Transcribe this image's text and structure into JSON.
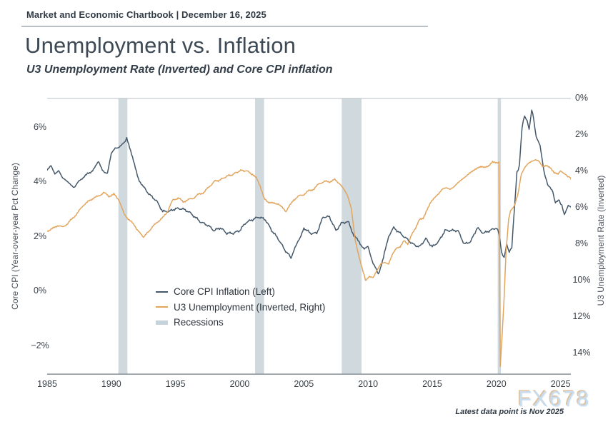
{
  "header": {
    "kicker": "Market and Economic Chartbook | December 16, 2025"
  },
  "title": "Unemployment vs. Inflation",
  "subtitle": "U3 Unemployment Rate (Inverted) and Core CPI inflation",
  "watermark": "FX678",
  "footnote": "Latest data point is Nov 2025",
  "colors": {
    "cpi_line": "#44586a",
    "u3_line": "#e2a55e",
    "recession_band": "#d0d9de",
    "top_border": "#cbd1d5",
    "bottom_axis": "#8f989e"
  },
  "chart_data": {
    "type": "line",
    "title": "Unemployment vs. Inflation",
    "x_range": [
      1985,
      2025.8
    ],
    "x_ticks": [
      {
        "v": 1985,
        "label": "1985"
      },
      {
        "v": 1990,
        "label": "1990"
      },
      {
        "v": 1995,
        "label": "1995"
      },
      {
        "v": 2000,
        "label": "2000"
      },
      {
        "v": 2005,
        "label": "2005"
      },
      {
        "v": 2010,
        "label": "2010"
      },
      {
        "v": 2015,
        "label": "2015"
      },
      {
        "v": 2020,
        "label": "2020"
      },
      {
        "v": 2025,
        "label": "2025"
      }
    ],
    "left_axis": {
      "title": "Core CPI (Year-over-year Pct Change)",
      "range": [
        -3.08,
        7.06
      ],
      "ticks": [
        {
          "v": 6,
          "label": "6%"
        },
        {
          "v": 4,
          "label": "4%"
        },
        {
          "v": 2,
          "label": "2%"
        },
        {
          "v": 0,
          "label": "0%"
        },
        {
          "v": -2,
          "label": "−2%"
        }
      ]
    },
    "right_axis": {
      "title": "U3 Unemployment Rate (Inverted)",
      "inverted": true,
      "range": [
        0,
        15.2
      ],
      "ticks": [
        {
          "v": 0,
          "label": "0%"
        },
        {
          "v": 2,
          "label": "2%"
        },
        {
          "v": 4,
          "label": "4%"
        },
        {
          "v": 6,
          "label": "6%"
        },
        {
          "v": 8,
          "label": "8%"
        },
        {
          "v": 10,
          "label": "10%"
        },
        {
          "v": 12,
          "label": "12%"
        },
        {
          "v": 14,
          "label": "14%"
        }
      ]
    },
    "recessions": {
      "label": "Recessions",
      "color": "#d0d9de",
      "spans": [
        [
          1990.55,
          1991.25
        ],
        [
          2001.2,
          2001.9
        ],
        [
          2007.95,
          2009.5
        ],
        [
          2020.1,
          2020.35
        ]
      ]
    },
    "series": [
      {
        "name": "Core CPI Inflation (Left)",
        "axis": "left",
        "color": "#44586a",
        "points": [
          [
            1985.0,
            4.4
          ],
          [
            1985.3,
            4.6
          ],
          [
            1985.6,
            4.3
          ],
          [
            1985.9,
            4.4
          ],
          [
            1986.2,
            4.1
          ],
          [
            1986.5,
            4.0
          ],
          [
            1986.8,
            3.9
          ],
          [
            1987.1,
            3.8
          ],
          [
            1987.5,
            4.0
          ],
          [
            1987.9,
            4.2
          ],
          [
            1988.3,
            4.3
          ],
          [
            1988.7,
            4.5
          ],
          [
            1989.0,
            4.7
          ],
          [
            1989.3,
            4.4
          ],
          [
            1989.7,
            4.3
          ],
          [
            1990.0,
            5.0
          ],
          [
            1990.3,
            5.2
          ],
          [
            1990.7,
            5.3
          ],
          [
            1991.0,
            5.4
          ],
          [
            1991.2,
            5.6
          ],
          [
            1991.5,
            5.1
          ],
          [
            1991.8,
            4.6
          ],
          [
            1992.1,
            4.1
          ],
          [
            1992.5,
            3.8
          ],
          [
            1993.0,
            3.5
          ],
          [
            1993.5,
            3.3
          ],
          [
            1994.0,
            2.9
          ],
          [
            1994.5,
            2.9
          ],
          [
            1995.0,
            3.0
          ],
          [
            1995.5,
            3.0
          ],
          [
            1996.0,
            2.9
          ],
          [
            1996.5,
            2.7
          ],
          [
            1997.0,
            2.5
          ],
          [
            1997.5,
            2.4
          ],
          [
            1998.0,
            2.2
          ],
          [
            1998.5,
            2.3
          ],
          [
            1999.0,
            2.1
          ],
          [
            1999.5,
            2.1
          ],
          [
            2000.0,
            2.2
          ],
          [
            2000.5,
            2.5
          ],
          [
            2001.0,
            2.6
          ],
          [
            2001.5,
            2.7
          ],
          [
            2002.0,
            2.6
          ],
          [
            2002.5,
            2.2
          ],
          [
            2003.0,
            1.9
          ],
          [
            2003.5,
            1.5
          ],
          [
            2004.0,
            1.2
          ],
          [
            2004.3,
            1.6
          ],
          [
            2004.7,
            1.9
          ],
          [
            2005.0,
            2.3
          ],
          [
            2005.5,
            2.1
          ],
          [
            2006.0,
            2.1
          ],
          [
            2006.5,
            2.7
          ],
          [
            2007.0,
            2.7
          ],
          [
            2007.5,
            2.2
          ],
          [
            2008.0,
            2.5
          ],
          [
            2008.5,
            2.5
          ],
          [
            2008.9,
            2.0
          ],
          [
            2009.3,
            1.8
          ],
          [
            2009.7,
            1.5
          ],
          [
            2010.0,
            1.6
          ],
          [
            2010.4,
            1.0
          ],
          [
            2010.8,
            0.6
          ],
          [
            2011.2,
            1.2
          ],
          [
            2011.6,
            2.0
          ],
          [
            2012.0,
            2.3
          ],
          [
            2012.5,
            2.1
          ],
          [
            2013.0,
            1.9
          ],
          [
            2013.5,
            1.7
          ],
          [
            2014.0,
            1.6
          ],
          [
            2014.5,
            1.9
          ],
          [
            2015.0,
            1.6
          ],
          [
            2015.5,
            1.8
          ],
          [
            2016.0,
            2.2
          ],
          [
            2016.5,
            2.2
          ],
          [
            2017.0,
            2.2
          ],
          [
            2017.5,
            1.7
          ],
          [
            2018.0,
            1.8
          ],
          [
            2018.5,
            2.3
          ],
          [
            2019.0,
            2.1
          ],
          [
            2019.5,
            2.2
          ],
          [
            2020.0,
            2.3
          ],
          [
            2020.2,
            2.1
          ],
          [
            2020.4,
            1.4
          ],
          [
            2020.6,
            1.2
          ],
          [
            2020.8,
            1.7
          ],
          [
            2021.0,
            1.4
          ],
          [
            2021.2,
            1.6
          ],
          [
            2021.4,
            3.0
          ],
          [
            2021.6,
            4.3
          ],
          [
            2021.8,
            4.6
          ],
          [
            2022.0,
            6.0
          ],
          [
            2022.2,
            6.4
          ],
          [
            2022.4,
            6.2
          ],
          [
            2022.55,
            5.9
          ],
          [
            2022.75,
            6.6
          ],
          [
            2022.9,
            6.3
          ],
          [
            2023.1,
            5.6
          ],
          [
            2023.4,
            5.3
          ],
          [
            2023.7,
            4.4
          ],
          [
            2023.9,
            4.0
          ],
          [
            2024.1,
            3.8
          ],
          [
            2024.4,
            3.6
          ],
          [
            2024.6,
            3.2
          ],
          [
            2024.9,
            3.3
          ],
          [
            2025.1,
            3.1
          ],
          [
            2025.3,
            2.8
          ],
          [
            2025.6,
            3.1
          ],
          [
            2025.9,
            3.0
          ]
        ]
      },
      {
        "name": "U3 Unemployment (Inverted, Right)",
        "axis": "right",
        "color": "#e2a55e",
        "points": [
          [
            1985.0,
            7.3
          ],
          [
            1985.4,
            7.2
          ],
          [
            1985.8,
            7.0
          ],
          [
            1986.2,
            7.1
          ],
          [
            1986.6,
            6.9
          ],
          [
            1987.0,
            6.6
          ],
          [
            1987.4,
            6.3
          ],
          [
            1987.8,
            5.9
          ],
          [
            1988.2,
            5.7
          ],
          [
            1988.6,
            5.5
          ],
          [
            1989.0,
            5.4
          ],
          [
            1989.4,
            5.2
          ],
          [
            1989.8,
            5.4
          ],
          [
            1990.2,
            5.3
          ],
          [
            1990.6,
            5.6
          ],
          [
            1991.0,
            6.4
          ],
          [
            1991.4,
            6.7
          ],
          [
            1991.8,
            7.0
          ],
          [
            1992.2,
            7.4
          ],
          [
            1992.5,
            7.7
          ],
          [
            1992.8,
            7.4
          ],
          [
            1993.2,
            7.1
          ],
          [
            1993.6,
            6.8
          ],
          [
            1994.0,
            6.6
          ],
          [
            1994.4,
            6.2
          ],
          [
            1994.8,
            5.6
          ],
          [
            1995.2,
            5.5
          ],
          [
            1995.6,
            5.7
          ],
          [
            1996.0,
            5.6
          ],
          [
            1996.4,
            5.5
          ],
          [
            1996.8,
            5.3
          ],
          [
            1997.2,
            5.2
          ],
          [
            1997.6,
            4.9
          ],
          [
            1998.0,
            4.6
          ],
          [
            1998.5,
            4.5
          ],
          [
            1999.0,
            4.3
          ],
          [
            1999.5,
            4.2
          ],
          [
            2000.0,
            4.0
          ],
          [
            2000.5,
            4.0
          ],
          [
            2001.0,
            4.2
          ],
          [
            2001.3,
            4.4
          ],
          [
            2001.6,
            4.9
          ],
          [
            2001.9,
            5.5
          ],
          [
            2002.2,
            5.7
          ],
          [
            2002.6,
            5.8
          ],
          [
            2003.0,
            5.8
          ],
          [
            2003.3,
            6.0
          ],
          [
            2003.6,
            6.3
          ],
          [
            2003.9,
            5.9
          ],
          [
            2004.2,
            5.6
          ],
          [
            2004.6,
            5.4
          ],
          [
            2005.0,
            5.3
          ],
          [
            2005.4,
            5.1
          ],
          [
            2005.8,
            5.0
          ],
          [
            2006.2,
            4.7
          ],
          [
            2006.6,
            4.6
          ],
          [
            2007.0,
            4.6
          ],
          [
            2007.4,
            4.5
          ],
          [
            2007.8,
            4.7
          ],
          [
            2008.1,
            5.0
          ],
          [
            2008.4,
            5.4
          ],
          [
            2008.7,
            6.1
          ],
          [
            2009.0,
            7.8
          ],
          [
            2009.3,
            8.7
          ],
          [
            2009.6,
            9.5
          ],
          [
            2009.8,
            10.0
          ],
          [
            2010.1,
            9.8
          ],
          [
            2010.4,
            9.9
          ],
          [
            2010.7,
            9.5
          ],
          [
            2011.0,
            9.1
          ],
          [
            2011.3,
            9.0
          ],
          [
            2011.6,
            9.1
          ],
          [
            2011.9,
            8.6
          ],
          [
            2012.2,
            8.3
          ],
          [
            2012.5,
            8.2
          ],
          [
            2012.8,
            7.8
          ],
          [
            2013.1,
            8.0
          ],
          [
            2013.4,
            7.5
          ],
          [
            2013.7,
            7.2
          ],
          [
            2014.0,
            6.7
          ],
          [
            2014.3,
            6.6
          ],
          [
            2014.6,
            6.1
          ],
          [
            2014.9,
            5.7
          ],
          [
            2015.2,
            5.5
          ],
          [
            2015.5,
            5.3
          ],
          [
            2015.8,
            5.0
          ],
          [
            2016.1,
            4.9
          ],
          [
            2016.4,
            5.0
          ],
          [
            2016.7,
            4.9
          ],
          [
            2017.0,
            4.7
          ],
          [
            2017.3,
            4.5
          ],
          [
            2017.6,
            4.3
          ],
          [
            2017.9,
            4.1
          ],
          [
            2018.2,
            4.0
          ],
          [
            2018.5,
            3.9
          ],
          [
            2018.8,
            3.8
          ],
          [
            2019.1,
            3.8
          ],
          [
            2019.4,
            3.7
          ],
          [
            2019.7,
            3.5
          ],
          [
            2020.0,
            3.6
          ],
          [
            2020.2,
            3.5
          ],
          [
            2020.3,
            14.8
          ],
          [
            2020.45,
            13.0
          ],
          [
            2020.6,
            11.0
          ],
          [
            2020.75,
            8.4
          ],
          [
            2020.95,
            6.7
          ],
          [
            2021.1,
            6.2
          ],
          [
            2021.4,
            5.9
          ],
          [
            2021.7,
            5.2
          ],
          [
            2021.95,
            4.2
          ],
          [
            2022.2,
            3.8
          ],
          [
            2022.5,
            3.6
          ],
          [
            2022.8,
            3.5
          ],
          [
            2023.0,
            3.4
          ],
          [
            2023.3,
            3.5
          ],
          [
            2023.6,
            3.8
          ],
          [
            2023.9,
            3.7
          ],
          [
            2024.2,
            3.8
          ],
          [
            2024.5,
            4.1
          ],
          [
            2024.8,
            4.2
          ],
          [
            2025.0,
            4.0
          ],
          [
            2025.3,
            4.2
          ],
          [
            2025.55,
            4.3
          ],
          [
            2025.75,
            4.4
          ],
          [
            2025.9,
            4.6
          ]
        ]
      }
    ]
  }
}
